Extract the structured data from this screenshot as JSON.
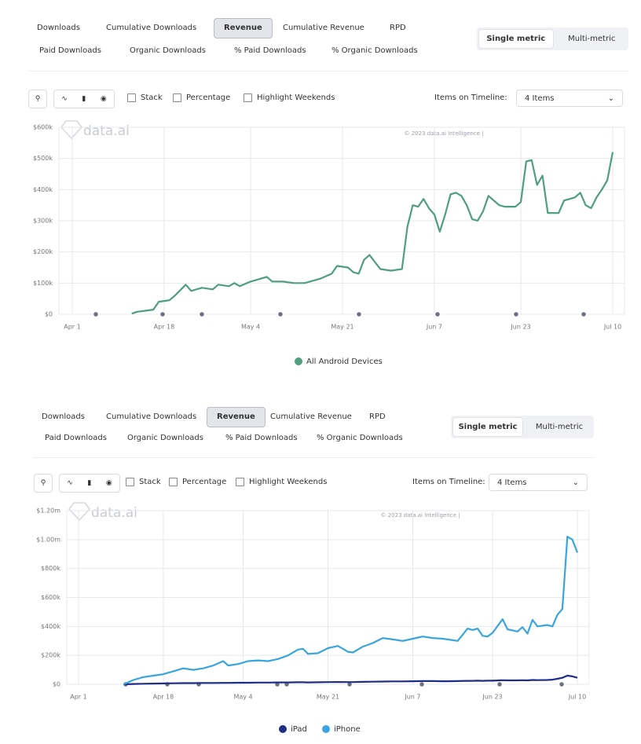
{
  "panels": [
    {
      "tabs": [
        "Downloads",
        "Cumulative Downloads",
        "Revenue",
        "Cumulative Revenue",
        "RPD"
      ],
      "tabs2": [
        "Paid Downloads",
        "Organic Downloads",
        "% Paid Downloads",
        "% Organic Downloads"
      ],
      "toggle": [
        "Single metric",
        "Multi-metric"
      ],
      "options": [
        "Stack",
        "Percentage",
        "Highlight Weekends"
      ],
      "items_label": "Items on Timeline:",
      "items_value": "4 Items",
      "watermark": "data.ai",
      "copyright": "© 2023 data.ai Intelligence |"
    },
    {
      "tabs": [
        "Downloads",
        "Cumulative Downloads",
        "Revenue",
        "Cumulative Revenue",
        "RPD"
      ],
      "tabs2": [
        "Paid Downloads",
        "Organic Downloads",
        "% Paid Downloads",
        "% Organic Downloads"
      ],
      "toggle": [
        "Single metric",
        "Multi-metric"
      ],
      "options": [
        "Stack",
        "Percentage",
        "Highlight Weekends"
      ],
      "items_label": "Items on Timeline:",
      "items_value": "4 Items",
      "watermark": "data.ai",
      "copyright": "© 2023 data.ai Intelligence |"
    }
  ],
  "chart_data": [
    {
      "type": "line",
      "x": [
        "Apr 12",
        "Apr 13",
        "Apr 14",
        "Apr 16",
        "Apr 17",
        "Apr 19",
        "Apr 20",
        "Apr 22",
        "Apr 23",
        "Apr 25",
        "Apr 27",
        "Apr 28",
        "Apr 30",
        "May 1",
        "May 2",
        "May 4",
        "May 5",
        "May 7",
        "May 8",
        "May 10",
        "May 12",
        "May 14",
        "May 16",
        "May 17",
        "May 19",
        "May 20",
        "May 22",
        "May 23",
        "May 24",
        "May 25",
        "May 26",
        "May 28",
        "May 30",
        "Jun 1",
        "Jun 2",
        "Jun 3",
        "Jun 4",
        "Jun 5",
        "Jun 6",
        "Jun 7",
        "Jun 8",
        "Jun 9",
        "Jun 10",
        "Jun 11",
        "Jun 12",
        "Jun 13",
        "Jun 14",
        "Jun 15",
        "Jun 16",
        "Jun 17",
        "Jun 19",
        "Jun 20",
        "Jun 22",
        "Jun 23",
        "Jun 24",
        "Jun 25",
        "Jun 26",
        "Jun 27",
        "Jun 28",
        "Jun 29",
        "Jun 30",
        "Jul 1",
        "Jul 3",
        "Jul 4",
        "Jul 5",
        "Jul 6",
        "Jul 7",
        "Jul 8",
        "Jul 9",
        "Jul 10"
      ],
      "series": [
        {
          "name": "All Android Devices",
          "color": "#4f9e7d",
          "values": [
            2000,
            8000,
            10000,
            15000,
            40000,
            45000,
            60000,
            95000,
            75000,
            85000,
            80000,
            95000,
            90000,
            100000,
            90000,
            105000,
            110000,
            120000,
            105000,
            105000,
            100000,
            100000,
            110000,
            115000,
            130000,
            155000,
            150000,
            135000,
            130000,
            175000,
            190000,
            145000,
            140000,
            145000,
            280000,
            350000,
            345000,
            370000,
            340000,
            320000,
            265000,
            320000,
            385000,
            390000,
            380000,
            350000,
            305000,
            300000,
            330000,
            380000,
            350000,
            345000,
            345000,
            360000,
            490000,
            495000,
            415000,
            445000,
            325000,
            325000,
            325000,
            365000,
            375000,
            390000,
            350000,
            340000,
            375000,
            400000,
            430000,
            520000
          ]
        }
      ],
      "xlim": [
        "Apr 1",
        "Jul 10"
      ],
      "xticks": [
        "Apr 1",
        "Apr 18",
        "May 4",
        "May 21",
        "Jun 7",
        "Jun 23",
        "Jul 10"
      ],
      "ylim": [
        0,
        600000
      ],
      "yticks": [
        {
          "value": 0,
          "label": "$0"
        },
        {
          "value": 100000,
          "label": "$100k"
        },
        {
          "value": 200000,
          "label": "$200k"
        },
        {
          "value": 300000,
          "label": "$300k"
        },
        {
          "value": 400000,
          "label": "$400k"
        },
        {
          "value": 500000,
          "label": "$500k"
        },
        {
          "value": 600000,
          "label": "$600k"
        }
      ],
      "grid": true,
      "legend": "bottom"
    },
    {
      "type": "line",
      "x": [
        "Apr 10",
        "Apr 12",
        "Apr 14",
        "Apr 16",
        "Apr 18",
        "Apr 20",
        "Apr 22",
        "Apr 24",
        "Apr 26",
        "Apr 28",
        "Apr 30",
        "May 1",
        "May 3",
        "May 5",
        "May 7",
        "May 9",
        "May 11",
        "May 13",
        "May 15",
        "May 16",
        "May 17",
        "May 19",
        "May 21",
        "May 23",
        "May 25",
        "May 26",
        "May 28",
        "May 30",
        "Jun 1",
        "Jun 3",
        "Jun 5",
        "Jun 7",
        "Jun 9",
        "Jun 11",
        "Jun 13",
        "Jun 14",
        "Jun 16",
        "Jun 18",
        "Jun 19",
        "Jun 20",
        "Jun 21",
        "Jun 22",
        "Jun 23",
        "Jun 25",
        "Jun 26",
        "Jun 28",
        "Jun 29",
        "Jun 30",
        "Jul 1",
        "Jul 2",
        "Jul 4",
        "Jul 5",
        "Jul 6",
        "Jul 7",
        "Jul 8",
        "Jul 9",
        "Jul 10"
      ],
      "series": [
        {
          "name": "iPad",
          "color": "#1f2d8a",
          "values": [
            0,
            2000,
            4000,
            5000,
            6000,
            7000,
            8000,
            8000,
            9000,
            9000,
            10000,
            10000,
            11000,
            11000,
            12000,
            12000,
            13000,
            13000,
            14000,
            14000,
            13000,
            14000,
            15000,
            16000,
            15000,
            15000,
            17000,
            18000,
            19000,
            20000,
            20000,
            21000,
            22000,
            22000,
            21000,
            21000,
            22000,
            24000,
            24000,
            25000,
            24000,
            25000,
            25000,
            28000,
            27000,
            27000,
            28000,
            27000,
            30000,
            29000,
            30000,
            32000,
            38000,
            45000,
            60000,
            55000,
            45000
          ]
        },
        {
          "name": "iPhone",
          "color": "#3aa5dc",
          "values": [
            0,
            30000,
            50000,
            60000,
            70000,
            90000,
            110000,
            100000,
            110000,
            130000,
            160000,
            130000,
            140000,
            160000,
            165000,
            160000,
            175000,
            200000,
            240000,
            245000,
            210000,
            215000,
            250000,
            265000,
            225000,
            220000,
            260000,
            285000,
            320000,
            310000,
            300000,
            315000,
            330000,
            320000,
            315000,
            310000,
            300000,
            385000,
            375000,
            385000,
            335000,
            330000,
            355000,
            450000,
            380000,
            365000,
            395000,
            350000,
            445000,
            400000,
            410000,
            400000,
            480000,
            520000,
            1020000,
            1000000,
            910000
          ]
        }
      ],
      "xlim": [
        "Apr 1",
        "Jul 10"
      ],
      "xticks": [
        "Apr 1",
        "Apr 18",
        "May 4",
        "May 21",
        "Jun 7",
        "Jun 23",
        "Jul 10"
      ],
      "ylim": [
        0,
        1200000
      ],
      "yticks": [
        {
          "value": 0,
          "label": "$0"
        },
        {
          "value": 200000,
          "label": "$200k"
        },
        {
          "value": 400000,
          "label": "$400k"
        },
        {
          "value": 600000,
          "label": "$600k"
        },
        {
          "value": 800000,
          "label": "$800k"
        },
        {
          "value": 1000000,
          "label": "$1.00m"
        },
        {
          "value": 1200000,
          "label": "$1.20m"
        }
      ],
      "grid": true,
      "legend": "bottom"
    }
  ]
}
